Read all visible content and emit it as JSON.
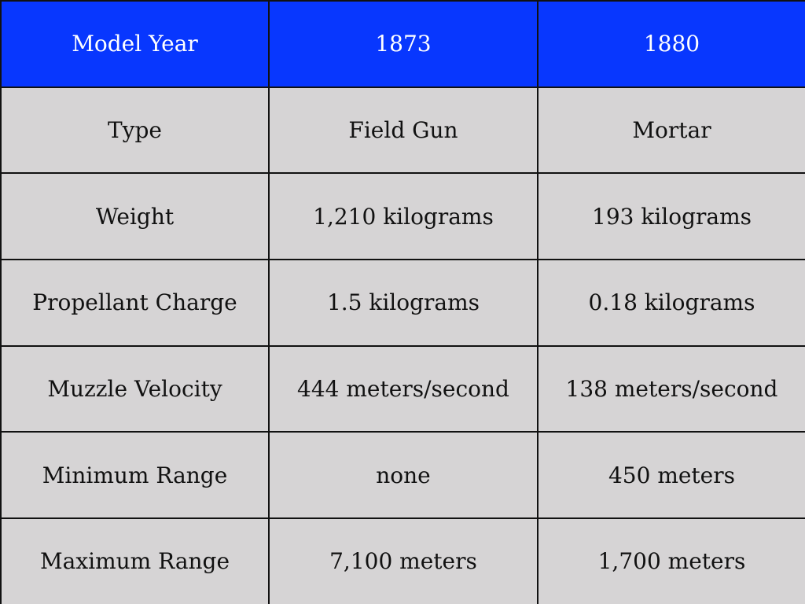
{
  "colors": {
    "header_background": "#0837fe",
    "header_text": "#ffffff",
    "cell_background": "#d6d4d5",
    "cell_text": "#111111",
    "grid_lines": "#111111"
  },
  "table": {
    "header": [
      "Model Year",
      "1873",
      "1880"
    ],
    "rows": [
      [
        "Type",
        "Field Gun",
        "Mortar"
      ],
      [
        "Weight",
        "1,210 kilograms",
        "193 kilograms"
      ],
      [
        "Propellant Charge",
        "1.5 kilograms",
        "0.18 kilograms"
      ],
      [
        "Muzzle Velocity",
        "444 meters/second",
        "138 meters/second"
      ],
      [
        "Minimum Range",
        "none",
        "450 meters"
      ],
      [
        "Maximum Range",
        "7,100 meters",
        "1,700 meters"
      ]
    ]
  }
}
